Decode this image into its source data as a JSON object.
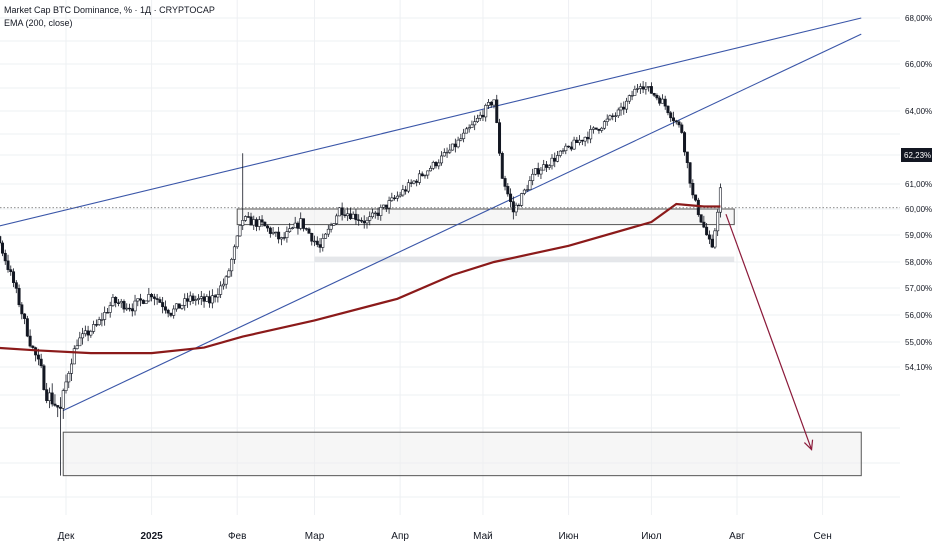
{
  "legend": {
    "title": "Market Cap BTC Dominance, % · 1Д · CRYPTOCAP",
    "indicator": "EMA (200, close)"
  },
  "colors": {
    "ema": "#8b1a1a",
    "trendline": "#3a56a8",
    "arrow": "#8b1a3a",
    "candle": "#131722",
    "zone_border": "#555555",
    "zone_fill": "#eeeeee",
    "grid": "#eef0f3",
    "price_tag": "#131722"
  },
  "chart_data": {
    "type": "candlestick",
    "title": "Market Cap BTC Dominance, % · 1Д · CRYPTOCAP",
    "y_unit": "%",
    "y_ticks": [
      "68,00%",
      "66,00%",
      "64,00%",
      "61,00%",
      "60,00%",
      "59,00%",
      "58,00%",
      "57,00%",
      "56,00%",
      "55,00%",
      "54,10%"
    ],
    "x_ticks": [
      "Дек",
      "2025",
      "Фев",
      "Мар",
      "Апр",
      "Май",
      "Июн",
      "Июл",
      "Авг",
      "Сен"
    ],
    "current_price_label": "62,23%",
    "price_path": [
      [
        "2024-10-20",
        57.3
      ],
      [
        "2024-10-28",
        58.7
      ],
      [
        "2024-11-05",
        59.3
      ],
      [
        "2024-11-12",
        57.2
      ],
      [
        "2024-11-18",
        55.0
      ],
      [
        "2024-11-24",
        53.5
      ],
      [
        "2024-11-29",
        53.1
      ],
      [
        "2024-12-05",
        55.0
      ],
      [
        "2024-12-12",
        55.6
      ],
      [
        "2024-12-18",
        56.5
      ],
      [
        "2024-12-25",
        56.3
      ],
      [
        "2025-01-01",
        56.8
      ],
      [
        "2025-01-08",
        56.1
      ],
      [
        "2025-01-15",
        56.6
      ],
      [
        "2025-01-22",
        56.5
      ],
      [
        "2025-01-28",
        57.3
      ],
      [
        "2025-02-03",
        59.6
      ],
      [
        "2025-02-10",
        59.4
      ],
      [
        "2025-02-17",
        58.8
      ],
      [
        "2025-02-24",
        59.5
      ],
      [
        "2025-03-03",
        58.5
      ],
      [
        "2025-03-10",
        60.0
      ],
      [
        "2025-03-20",
        59.5
      ],
      [
        "2025-03-31",
        60.5
      ],
      [
        "2025-04-10",
        61.5
      ],
      [
        "2025-04-20",
        62.5
      ],
      [
        "2025-04-28",
        63.5
      ],
      [
        "2025-05-05",
        64.5
      ],
      [
        "2025-05-08",
        61.3
      ],
      [
        "2025-05-12",
        59.9
      ],
      [
        "2025-05-20",
        61.5
      ],
      [
        "2025-06-01",
        62.5
      ],
      [
        "2025-06-10",
        63.2
      ],
      [
        "2025-06-20",
        64.0
      ],
      [
        "2025-06-27",
        65.2
      ],
      [
        "2025-07-05",
        64.4
      ],
      [
        "2025-07-12",
        63.2
      ],
      [
        "2025-07-16",
        60.5
      ],
      [
        "2025-07-20",
        59.3
      ],
      [
        "2025-07-23",
        58.4
      ],
      [
        "2025-07-26",
        60.8
      ]
    ],
    "ema200": [
      [
        "2024-10-20",
        54.6
      ],
      [
        "2024-11-05",
        54.8
      ],
      [
        "2024-11-20",
        54.7
      ],
      [
        "2024-12-10",
        54.6
      ],
      [
        "2025-01-01",
        54.6
      ],
      [
        "2025-01-20",
        54.8
      ],
      [
        "2025-02-03",
        55.2
      ],
      [
        "2025-03-01",
        55.8
      ],
      [
        "2025-03-31",
        56.6
      ],
      [
        "2025-04-20",
        57.5
      ],
      [
        "2025-05-05",
        58.0
      ],
      [
        "2025-06-01",
        58.6
      ],
      [
        "2025-07-01",
        59.5
      ],
      [
        "2025-07-10",
        60.2
      ],
      [
        "2025-07-20",
        60.1
      ],
      [
        "2025-07-26",
        60.1
      ]
    ],
    "trendlines": [
      {
        "from": [
          "2024-11-05",
          59.3
        ],
        "to": [
          "2025-09-15",
          68.0
        ]
      },
      {
        "from": [
          "2024-11-30",
          53.1
        ],
        "to": [
          "2025-09-15",
          67.3
        ]
      }
    ],
    "zones": [
      {
        "from": "2025-02-01",
        "to": "2025-07-31",
        "top": 60.0,
        "bottom": 59.4
      },
      {
        "from": "2025-03-01",
        "to": "2025-07-31",
        "top": 58.2,
        "bottom": 58.0
      },
      {
        "from": "2024-11-30",
        "to": "2025-09-15",
        "top": 52.6,
        "bottom": 51.6
      }
    ],
    "projection_arrow": {
      "from": [
        "2025-07-28",
        59.8
      ],
      "to": [
        "2025-08-28",
        52.2
      ]
    }
  }
}
